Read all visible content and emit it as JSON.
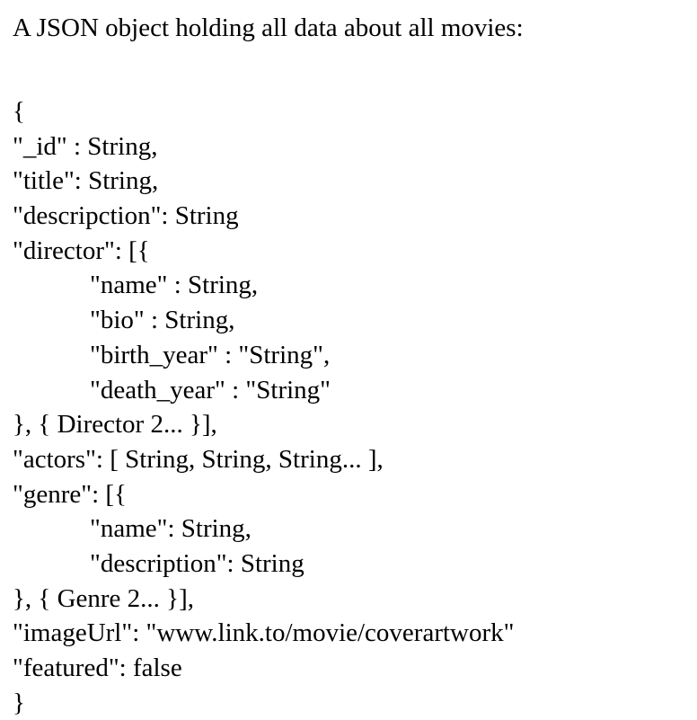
{
  "intro": "A JSON object holding all data about all movies:",
  "lines": [
    {
      "text": "{",
      "indent": false
    },
    {
      "text": "\"_id\" : String,",
      "indent": false
    },
    {
      "text": "\"title\": String,",
      "indent": false
    },
    {
      "text": "\"descripction\": String",
      "indent": false
    },
    {
      "text": "\"director\": [{",
      "indent": false
    },
    {
      "text": "\"name\" : String,",
      "indent": true
    },
    {
      "text": "\"bio\" : String,",
      "indent": true
    },
    {
      "text": "\"birth_year\" : \"String\",",
      "indent": true
    },
    {
      "text": "\"death_year\" : \"String\"",
      "indent": true
    },
    {
      "text": "}, { Director 2... }],",
      "indent": false
    },
    {
      "text": "\"actors\": [ String, String, String... ],",
      "indent": false
    },
    {
      "text": "\"genre\": [{",
      "indent": false
    },
    {
      "text": "\"name\": String,",
      "indent": true
    },
    {
      "text": "\"description\": String",
      "indent": true
    },
    {
      "text": "}, { Genre 2... }],",
      "indent": false
    },
    {
      "text": "\"imageUrl\": \"www.link.to/movie/coverartwork\"",
      "indent": false
    },
    {
      "text": "\"featured\": false",
      "indent": false
    },
    {
      "text": "}",
      "indent": false
    }
  ]
}
